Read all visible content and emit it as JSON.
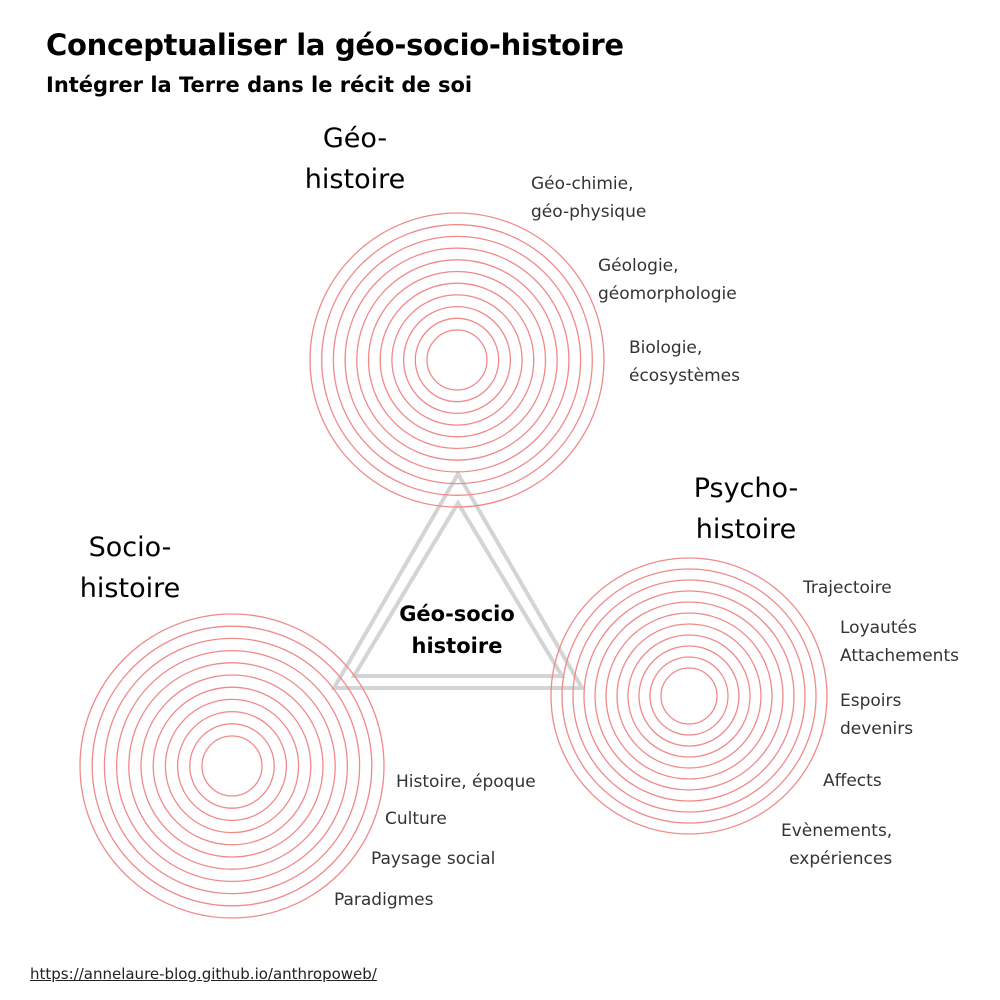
{
  "title": "Conceptualiser la géo-socio-histoire",
  "subtitle": "Intégrer la Terre dans le récit de soi",
  "center": {
    "line1": "Géo-socio",
    "line2": "histoire"
  },
  "geo": {
    "heading": [
      "Géo-",
      "histoire"
    ],
    "labels": [
      [
        "Géo-chimie,",
        "géo-physique"
      ],
      [
        "Géologie,",
        "géomorphologie"
      ],
      [
        "Biologie,",
        "écosystèmes"
      ]
    ]
  },
  "socio": {
    "heading": [
      "Socio-",
      "histoire"
    ],
    "labels": [
      "Histoire, époque",
      "Culture",
      "Paysage social",
      "Paradigmes"
    ]
  },
  "psycho": {
    "heading": [
      "Psycho-",
      "histoire"
    ],
    "labels": [
      [
        "Trajectoire"
      ],
      [
        "Loyautés",
        "Attachements"
      ],
      [
        "Espoirs",
        "devenirs"
      ],
      [
        "Affects"
      ],
      [
        "Evènements,",
        "expériences"
      ]
    ]
  },
  "footer": {
    "link": "https://annelaure-blog.github.io/anthropoweb/"
  },
  "colors": {
    "rings": "#f08a8a",
    "triangle": "#d4d4d4"
  }
}
